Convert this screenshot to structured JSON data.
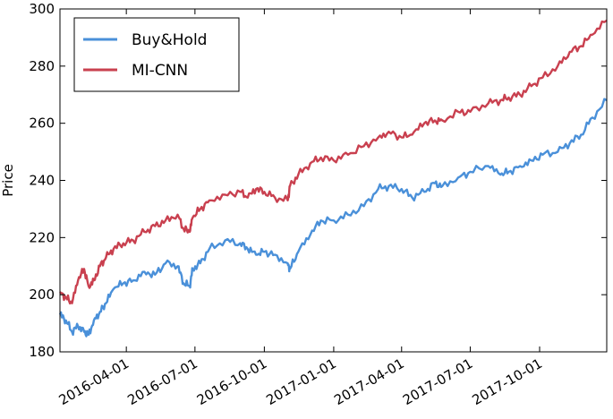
{
  "chart_data": {
    "type": "line",
    "title": "",
    "xlabel": "",
    "ylabel": "Price",
    "ylim": [
      180,
      300
    ],
    "xlim": [
      "2016-01-04",
      "2017-12-29"
    ],
    "yticks": [
      180,
      200,
      220,
      240,
      260,
      280,
      300
    ],
    "xticks": [
      "2016-04-01",
      "2016-07-01",
      "2016-10-01",
      "2017-01-01",
      "2017-04-01",
      "2017-07-01",
      "2017-10-01"
    ],
    "grid": false,
    "legend": "top-left",
    "series": [
      {
        "name": "Buy&Hold",
        "color": "#4a90d9",
        "x": [
          "2016-01-04",
          "2016-01-12",
          "2016-01-20",
          "2016-01-28",
          "2016-02-05",
          "2016-02-11",
          "2016-02-18",
          "2016-02-26",
          "2016-03-05",
          "2016-03-15",
          "2016-03-28",
          "2016-04-10",
          "2016-04-25",
          "2016-05-09",
          "2016-05-23",
          "2016-06-08",
          "2016-06-16",
          "2016-06-24",
          "2016-06-28",
          "2016-07-08",
          "2016-07-20",
          "2016-08-10",
          "2016-08-30",
          "2016-09-09",
          "2016-09-20",
          "2016-10-01",
          "2016-10-15",
          "2016-11-01",
          "2016-11-04",
          "2016-11-15",
          "2016-12-01",
          "2016-12-15",
          "2017-01-01",
          "2017-01-20",
          "2017-02-10",
          "2017-03-01",
          "2017-03-15",
          "2017-04-01",
          "2017-04-15",
          "2017-05-01",
          "2017-05-15",
          "2017-05-25",
          "2017-06-15",
          "2017-07-01",
          "2017-07-25",
          "2017-08-10",
          "2017-08-21",
          "2017-09-05",
          "2017-09-20",
          "2017-10-05",
          "2017-10-25",
          "2017-11-10",
          "2017-11-25",
          "2017-12-10",
          "2017-12-29"
        ],
        "y": [
          193,
          191,
          187,
          189,
          187,
          186,
          191,
          194,
          197,
          202,
          204,
          205,
          208,
          207,
          211,
          210,
          204,
          203,
          209,
          211,
          216,
          219,
          218,
          216,
          214,
          215,
          214,
          211,
          209,
          215,
          221,
          226,
          226,
          228,
          231,
          237,
          238,
          237,
          234,
          236,
          239,
          238,
          241,
          243,
          245,
          242,
          243,
          245,
          247,
          249,
          250,
          253,
          256,
          262,
          268
        ]
      },
      {
        "name": "MI-CNN",
        "color": "#c9404f",
        "x": [
          "2016-01-04",
          "2016-01-12",
          "2016-01-20",
          "2016-01-28",
          "2016-02-05",
          "2016-02-11",
          "2016-02-18",
          "2016-02-26",
          "2016-03-05",
          "2016-03-15",
          "2016-03-28",
          "2016-04-10",
          "2016-04-25",
          "2016-05-09",
          "2016-05-23",
          "2016-06-08",
          "2016-06-16",
          "2016-06-24",
          "2016-06-28",
          "2016-07-08",
          "2016-07-20",
          "2016-08-10",
          "2016-08-30",
          "2016-09-09",
          "2016-09-20",
          "2016-10-01",
          "2016-10-15",
          "2016-11-01",
          "2016-11-04",
          "2016-11-15",
          "2016-12-01",
          "2016-12-15",
          "2017-01-01",
          "2017-01-20",
          "2017-02-10",
          "2017-03-01",
          "2017-03-15",
          "2017-04-01",
          "2017-04-15",
          "2017-05-01",
          "2017-05-15",
          "2017-05-25",
          "2017-06-15",
          "2017-07-01",
          "2017-07-25",
          "2017-08-10",
          "2017-08-21",
          "2017-09-05",
          "2017-09-20",
          "2017-10-05",
          "2017-10-25",
          "2017-11-10",
          "2017-11-25",
          "2017-12-10",
          "2017-12-29"
        ],
        "y": [
          201,
          199,
          197,
          205,
          209,
          203,
          205,
          210,
          213,
          216,
          218,
          219,
          222,
          224,
          226,
          228,
          223,
          222,
          227,
          230,
          233,
          235,
          236,
          234,
          237,
          236,
          234,
          233,
          238,
          242,
          246,
          248,
          247,
          249,
          252,
          255,
          257,
          255,
          256,
          260,
          261,
          261,
          264,
          264,
          267,
          268,
          269,
          270,
          273,
          276,
          280,
          285,
          287,
          291,
          296
        ]
      }
    ]
  }
}
